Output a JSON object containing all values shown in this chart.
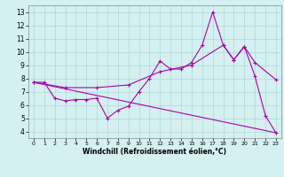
{
  "xlabel": "Windchill (Refroidissement éolien,°C)",
  "bg_color": "#d4f0f0",
  "grid_color": "#b0d8d8",
  "line_color": "#aa00aa",
  "xlim": [
    -0.5,
    23.5
  ],
  "ylim": [
    3.5,
    13.5
  ],
  "xticks": [
    0,
    1,
    2,
    3,
    4,
    5,
    6,
    7,
    8,
    9,
    10,
    11,
    12,
    13,
    14,
    15,
    16,
    17,
    18,
    19,
    20,
    21,
    22,
    23
  ],
  "yticks": [
    4,
    5,
    6,
    7,
    8,
    9,
    10,
    11,
    12,
    13
  ],
  "line1_x": [
    0,
    1,
    2,
    3,
    4,
    5,
    6,
    7,
    8,
    9,
    10,
    11,
    12,
    13,
    14,
    15,
    16,
    17,
    18,
    19,
    20,
    21,
    22,
    23
  ],
  "line1_y": [
    7.7,
    7.7,
    6.5,
    6.3,
    6.4,
    6.4,
    6.5,
    5.0,
    5.6,
    5.9,
    7.0,
    8.0,
    9.3,
    8.7,
    8.7,
    9.2,
    10.5,
    13.0,
    10.5,
    9.4,
    10.4,
    8.2,
    5.2,
    3.9
  ],
  "line2_x": [
    0,
    3,
    6,
    9,
    12,
    15,
    18,
    19,
    20,
    21,
    23
  ],
  "line2_y": [
    7.7,
    7.3,
    7.3,
    7.5,
    8.5,
    9.0,
    10.5,
    9.4,
    10.4,
    9.2,
    7.9
  ],
  "line3_x": [
    0,
    23
  ],
  "line3_y": [
    7.7,
    3.9
  ]
}
